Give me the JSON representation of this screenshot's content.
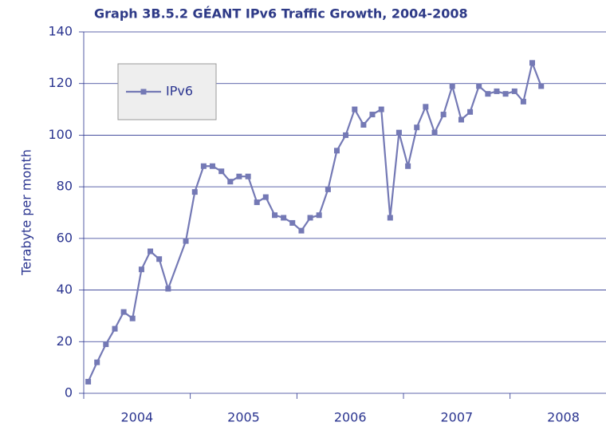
{
  "chart_data": {
    "type": "line",
    "title": "Graph 3B.5.2 GÉANT IPv6 Traffic Growth, 2004-2008",
    "y_label": "Terabyte per month",
    "x": [
      2004.042,
      2004.125,
      2004.208,
      2004.292,
      2004.375,
      2004.458,
      2004.542,
      2004.625,
      2004.708,
      2004.792,
      2004.958,
      2005.042,
      2005.125,
      2005.208,
      2005.292,
      2005.375,
      2005.458,
      2005.542,
      2005.625,
      2005.708,
      2005.792,
      2005.875,
      2005.958,
      2006.042,
      2006.125,
      2006.208,
      2006.292,
      2006.375,
      2006.458,
      2006.542,
      2006.625,
      2006.708,
      2006.792,
      2006.875,
      2006.958,
      2007.042,
      2007.125,
      2007.208,
      2007.292,
      2007.375,
      2007.458,
      2007.542,
      2007.625,
      2007.708,
      2007.792,
      2007.875,
      2007.958,
      2008.042,
      2008.125,
      2008.208,
      2008.292
    ],
    "series": [
      {
        "name": "IPv6",
        "color": "#7479b5",
        "values": [
          4.5,
          12,
          19,
          25,
          31.5,
          29,
          48,
          55,
          52,
          40.5,
          59,
          78,
          88,
          88,
          86,
          82,
          84,
          84,
          74,
          76,
          69,
          68,
          66,
          63,
          68,
          69,
          79,
          94,
          100,
          110,
          104,
          108,
          110,
          68,
          101,
          88,
          103,
          111,
          101,
          108,
          119,
          106,
          109,
          119,
          116,
          117,
          116,
          117,
          113,
          128,
          119
        ]
      }
    ],
    "xlim": [
      2004,
      2008.9
    ],
    "xticks": [
      2004,
      2005,
      2006,
      2007,
      2008
    ],
    "ylim": [
      0,
      140
    ],
    "yticks": [
      0,
      20,
      40,
      60,
      80,
      100,
      120,
      140
    ],
    "grid": true,
    "legend": "upper left"
  }
}
